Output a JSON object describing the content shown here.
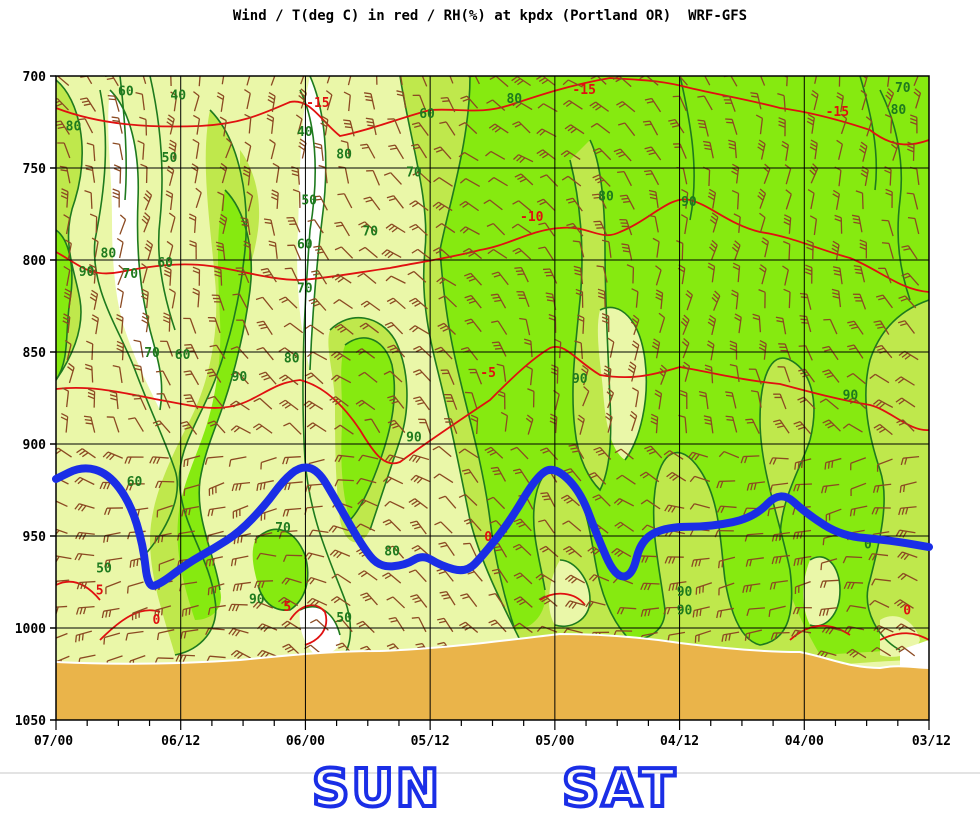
{
  "title": "Wind / T(deg C) in red / RH(%) at kpdx (Portland OR)  WRF-GFS",
  "chart_data": {
    "type": "time-height cross section",
    "title": "Wind / T(deg C) in red / RH(%) at kpdx (Portland OR)  WRF-GFS",
    "yaxis": {
      "ticks": [
        "700",
        "750",
        "800",
        "850",
        "900",
        "950",
        "1000",
        "1050"
      ],
      "range": [
        700,
        1050
      ],
      "inverted": true
    },
    "xaxis": {
      "ticks": [
        "07/00",
        "06/12",
        "06/00",
        "05/12",
        "05/00",
        "04/12",
        "04/00",
        "03/12"
      ],
      "reversed": true
    },
    "grid": true,
    "colors": {
      "rh_70": "#eaf7a8",
      "rh_80": "#bfe84c",
      "rh_90": "#86ea10",
      "contour": "#1e7a1e",
      "temperature": "#e01010",
      "barb": "#8b4a22",
      "ground": "#eab44a",
      "annotation": "#1a2ee6"
    },
    "rh_labels": [
      {
        "t": "60",
        "p": [
          0.08,
          708
        ]
      },
      {
        "t": "40",
        "p": [
          0.14,
          710
        ]
      },
      {
        "t": "80",
        "p": [
          0.02,
          727
        ]
      },
      {
        "t": "50",
        "p": [
          0.13,
          744
        ]
      },
      {
        "t": "40",
        "p": [
          0.285,
          730
        ]
      },
      {
        "t": "80",
        "p": [
          0.33,
          742
        ]
      },
      {
        "t": "60",
        "p": [
          0.425,
          720
        ]
      },
      {
        "t": "80",
        "p": [
          0.525,
          712
        ]
      },
      {
        "t": "70",
        "p": [
          0.41,
          752
        ]
      },
      {
        "t": "50",
        "p": [
          0.29,
          767
        ]
      },
      {
        "t": "70",
        "p": [
          0.36,
          784
        ]
      },
      {
        "t": "80",
        "p": [
          0.63,
          765
        ]
      },
      {
        "t": "90",
        "p": [
          0.725,
          768
        ]
      },
      {
        "t": "70",
        "p": [
          0.97,
          706
        ]
      },
      {
        "t": "80",
        "p": [
          0.965,
          718
        ]
      },
      {
        "t": "60",
        "p": [
          0.285,
          791
        ]
      },
      {
        "t": "80",
        "p": [
          0.06,
          796
        ]
      },
      {
        "t": "60",
        "p": [
          0.125,
          801
        ]
      },
      {
        "t": "90",
        "p": [
          0.035,
          806
        ]
      },
      {
        "t": "70",
        "p": [
          0.085,
          807
        ]
      },
      {
        "t": "70",
        "p": [
          0.285,
          815
        ]
      },
      {
        "t": "70",
        "p": [
          0.11,
          850
        ]
      },
      {
        "t": "60",
        "p": [
          0.145,
          851
        ]
      },
      {
        "t": "80",
        "p": [
          0.27,
          853
        ]
      },
      {
        "t": "90",
        "p": [
          0.21,
          863
        ]
      },
      {
        "t": "90",
        "p": [
          0.6,
          864
        ]
      },
      {
        "t": "90",
        "p": [
          0.91,
          873
        ]
      },
      {
        "t": "90",
        "p": [
          0.41,
          896
        ]
      },
      {
        "t": "60",
        "p": [
          0.09,
          920
        ]
      },
      {
        "t": "70",
        "p": [
          0.26,
          945
        ]
      },
      {
        "t": "80",
        "p": [
          0.385,
          958
        ]
      },
      {
        "t": "50",
        "p": [
          0.055,
          967
        ]
      },
      {
        "t": "90",
        "p": [
          0.23,
          984
        ]
      },
      {
        "t": "50",
        "p": [
          0.33,
          994
        ]
      },
      {
        "t": "90",
        "p": [
          0.72,
          980
        ]
      },
      {
        "t": "90",
        "p": [
          0.72,
          990
        ]
      },
      {
        "t": "0",
        "p": [
          0.93,
          954
        ]
      }
    ],
    "t_labels": [
      {
        "t": "-15",
        "p": [
          0.3,
          714
        ]
      },
      {
        "t": "-15",
        "p": [
          0.605,
          707
        ]
      },
      {
        "t": "-15",
        "p": [
          0.895,
          719
        ]
      },
      {
        "t": "-10",
        "p": [
          0.545,
          776
        ]
      },
      {
        "t": "-5",
        "p": [
          0.495,
          861
        ]
      },
      {
        "t": "5",
        "p": [
          0.05,
          979
        ]
      },
      {
        "t": "0",
        "p": [
          0.115,
          995
        ]
      },
      {
        "t": "5",
        "p": [
          0.265,
          988
        ]
      },
      {
        "t": "0",
        "p": [
          0.495,
          950
        ]
      },
      {
        "t": "0",
        "p": [
          0.975,
          990
        ]
      }
    ],
    "annotations": {
      "day_labels": [
        "SUN",
        "SAT"
      ],
      "inversion_trace": [
        [
          0.0,
          919
        ],
        [
          0.03,
          912
        ],
        [
          0.06,
          916
        ],
        [
          0.085,
          932
        ],
        [
          0.1,
          955
        ],
        [
          0.105,
          978
        ],
        [
          0.12,
          976
        ],
        [
          0.15,
          965
        ],
        [
          0.18,
          957
        ],
        [
          0.21,
          948
        ],
        [
          0.24,
          933
        ],
        [
          0.26,
          920
        ],
        [
          0.28,
          912
        ],
        [
          0.3,
          914
        ],
        [
          0.32,
          930
        ],
        [
          0.35,
          955
        ],
        [
          0.37,
          967
        ],
        [
          0.4,
          966
        ],
        [
          0.42,
          960
        ],
        [
          0.44,
          966
        ],
        [
          0.47,
          970
        ],
        [
          0.49,
          960
        ],
        [
          0.52,
          942
        ],
        [
          0.55,
          918
        ],
        [
          0.57,
          912
        ],
        [
          0.6,
          925
        ],
        [
          0.62,
          950
        ],
        [
          0.64,
          972
        ],
        [
          0.66,
          972
        ],
        [
          0.67,
          952
        ],
        [
          0.7,
          945
        ],
        [
          0.75,
          945
        ],
        [
          0.8,
          940
        ],
        [
          0.83,
          925
        ],
        [
          0.86,
          938
        ],
        [
          0.9,
          950
        ],
        [
          0.95,
          952
        ],
        [
          1.0,
          956
        ]
      ]
    }
  }
}
